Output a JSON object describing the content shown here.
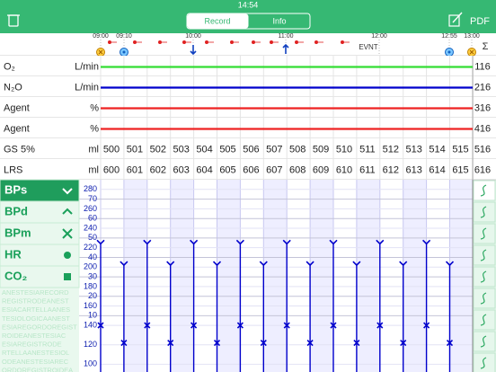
{
  "status_bar": {
    "time": "14:54"
  },
  "nav": {
    "tabs": [
      "Record",
      "Info"
    ],
    "pdf": "PDF"
  },
  "timeline": {
    "times": [
      "09:00",
      "09:10",
      "10:00",
      "11:00",
      "12:00",
      "12:55",
      "13:00"
    ],
    "event_label": "EVNT",
    "sum_label": "Σ"
  },
  "rows": [
    {
      "label": "O₂",
      "unit": "L/min",
      "color": "#33dd33",
      "total": 116
    },
    {
      "label": "N₂O",
      "unit": "L/min",
      "color": "#0000cc",
      "total": 216
    },
    {
      "label": "Agent",
      "unit": "%",
      "color": "#ee2222",
      "total": 316
    },
    {
      "label": "Agent",
      "unit": "%",
      "color": "#ee2222",
      "total": 416
    },
    {
      "label": "GS 5%",
      "unit": "ml",
      "values": [
        500,
        501,
        502,
        503,
        504,
        505,
        506,
        507,
        508,
        509,
        510,
        511,
        512,
        513,
        514,
        515
      ],
      "total": 516
    },
    {
      "label": "LRS",
      "unit": "ml",
      "values": [
        600,
        601,
        602,
        603,
        604,
        605,
        606,
        607,
        608,
        609,
        610,
        611,
        612,
        613,
        614,
        615
      ],
      "total": 616
    }
  ],
  "vitals": {
    "buttons": [
      "BPd",
      "HR",
      "CO₂"
    ],
    "watermark": [
      "ANESTESIARECORD",
      "REGISTRODEANEST",
      "ESIACARTELLAANES",
      "TESIOLOGICAANEST",
      "ESIAREGORDOREGIST",
      "ROIDEANESTESIAC",
      "ESIAREGISTRODE",
      "RTELLAANESTESIOL",
      "ODEANESTESIAREC",
      "ORDOREGISTROIDEA"
    ]
  },
  "chart_data": {
    "type": "scatter",
    "series": [
      {
        "name": "BPs",
        "color": "#0000cc",
        "values": [
          224,
          202,
          224,
          202,
          224,
          202,
          224,
          202,
          224,
          202,
          224,
          202,
          224,
          202,
          224,
          202
        ]
      },
      {
        "name": "BPm",
        "color": "#0000cc",
        "values": [
          140,
          122,
          140,
          122,
          140,
          122,
          140,
          122,
          140,
          122,
          140,
          122,
          140,
          122,
          140,
          122
        ]
      }
    ],
    "ylim": [
      92,
      290
    ],
    "yticks": [
      100,
      120,
      140,
      160,
      180,
      200,
      220,
      240,
      260,
      280
    ],
    "y2lim": [
      -19,
      80
    ],
    "y2ticks": [
      10,
      20,
      30,
      40,
      50,
      60,
      70
    ],
    "grid": true
  }
}
